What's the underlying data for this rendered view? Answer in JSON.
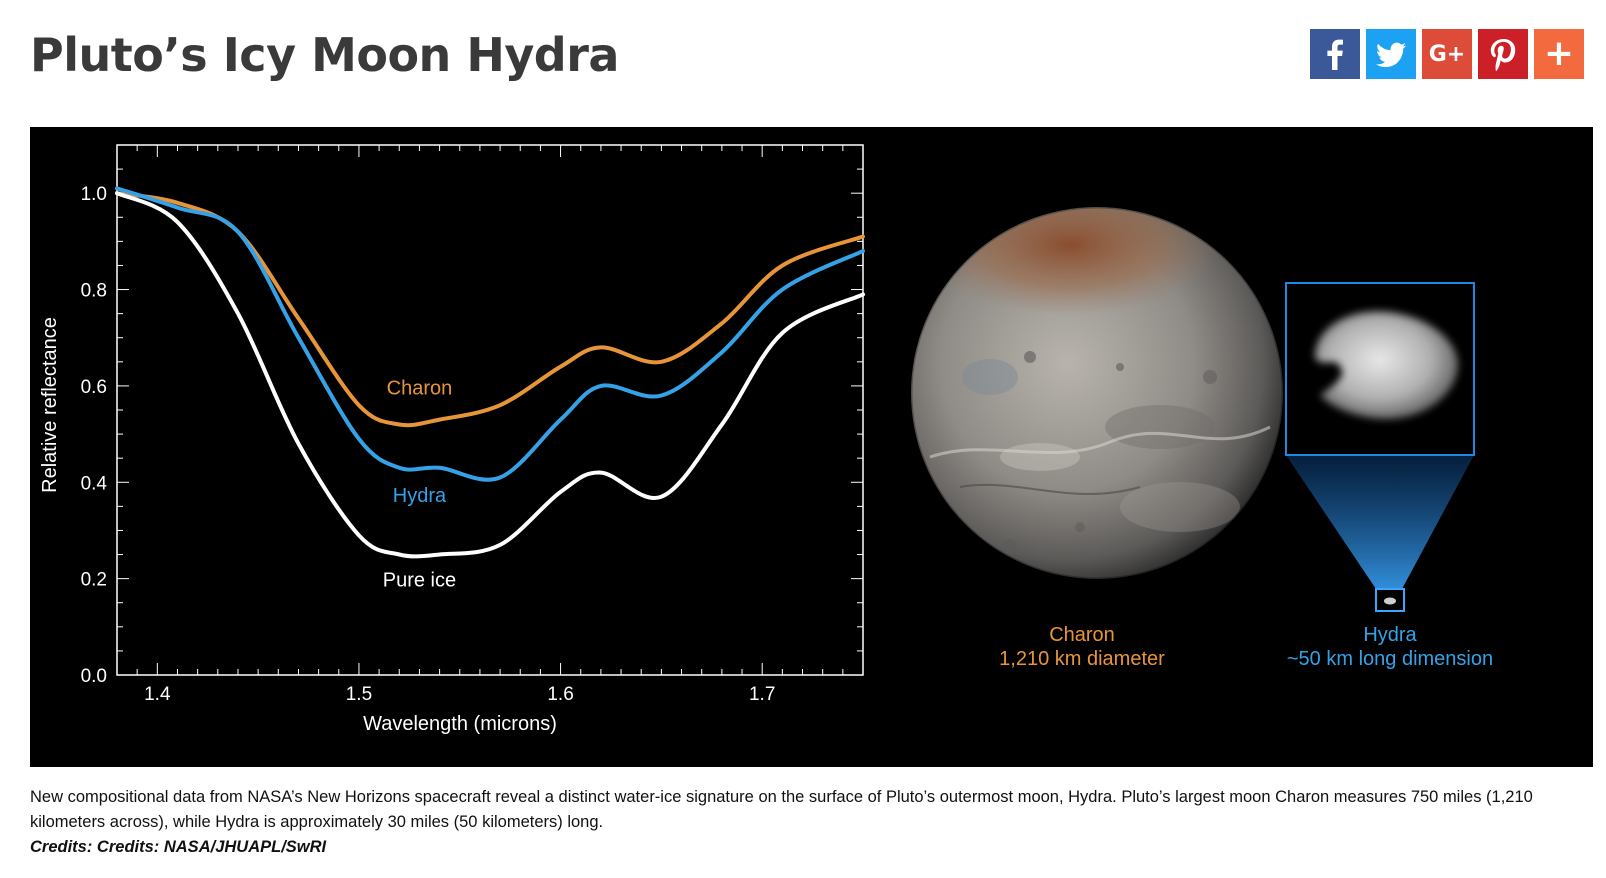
{
  "page": {
    "title": "Pluto’s Icy Moon Hydra"
  },
  "share": [
    {
      "name": "facebook",
      "icon": "facebook-icon",
      "color": "#3b5998"
    },
    {
      "name": "twitter",
      "icon": "twitter-icon",
      "color": "#1da1f2"
    },
    {
      "name": "google-plus",
      "icon": "google-plus-icon",
      "label": "G+",
      "color": "#dd4b39"
    },
    {
      "name": "pinterest",
      "icon": "pinterest-icon",
      "color": "#cb2027"
    },
    {
      "name": "more",
      "icon": "plus-icon",
      "label": "+",
      "color": "#f26a3d"
    }
  ],
  "chart_data": {
    "type": "line",
    "xlabel": "Wavelength (microns)",
    "ylabel": "Relative reflectance",
    "xlim": [
      1.38,
      1.75
    ],
    "ylim": [
      0.0,
      1.1
    ],
    "x_ticks": [
      1.4,
      1.5,
      1.6,
      1.7
    ],
    "x_tick_labels": [
      "1.4",
      "1.5",
      "1.6",
      "1.7"
    ],
    "y_ticks": [
      0.0,
      0.2,
      0.4,
      0.6,
      0.8,
      1.0
    ],
    "y_tick_labels": [
      "0.0",
      "0.2",
      "0.4",
      "0.6",
      "0.8",
      "1.0"
    ],
    "background": "#000000",
    "series": [
      {
        "name": "Charon",
        "color": "#e8953a",
        "x": [
          1.38,
          1.41,
          1.44,
          1.47,
          1.5,
          1.52,
          1.54,
          1.57,
          1.6,
          1.62,
          1.65,
          1.68,
          1.71,
          1.75
        ],
        "y": [
          1.0,
          0.98,
          0.92,
          0.74,
          0.56,
          0.52,
          0.53,
          0.56,
          0.64,
          0.68,
          0.65,
          0.73,
          0.85,
          0.91
        ]
      },
      {
        "name": "Hydra",
        "color": "#35a2e8",
        "x": [
          1.38,
          1.41,
          1.44,
          1.47,
          1.5,
          1.52,
          1.54,
          1.57,
          1.6,
          1.62,
          1.65,
          1.68,
          1.71,
          1.75
        ],
        "y": [
          1.01,
          0.97,
          0.92,
          0.7,
          0.49,
          0.43,
          0.43,
          0.41,
          0.53,
          0.6,
          0.58,
          0.67,
          0.8,
          0.88
        ]
      },
      {
        "name": "Pure ice",
        "color": "#ffffff",
        "x": [
          1.38,
          1.41,
          1.44,
          1.47,
          1.5,
          1.52,
          1.54,
          1.57,
          1.6,
          1.62,
          1.65,
          1.68,
          1.71,
          1.75
        ],
        "y": [
          1.0,
          0.94,
          0.75,
          0.48,
          0.29,
          0.25,
          0.25,
          0.27,
          0.38,
          0.42,
          0.37,
          0.52,
          0.71,
          0.79
        ]
      }
    ]
  },
  "image_panel": {
    "charon_label": "Charon",
    "charon_detail": "1,210 km diameter",
    "charon_color": "#e8953a",
    "hydra_label": "Hydra",
    "hydra_detail": "~50 km long dimension",
    "hydra_color": "#35a2e8"
  },
  "caption": {
    "text": "New compositional data from NASA’s New Horizons spacecraft reveal a distinct water-ice signature on the surface of Pluto’s outermost moon, Hydra. Pluto’s largest moon Charon measures 750 miles (1,210 kilometers across), while Hydra is approximately 30 miles (50 kilometers) long.",
    "credit": "Credits: Credits: NASA/JHUAPL/SwRI"
  }
}
